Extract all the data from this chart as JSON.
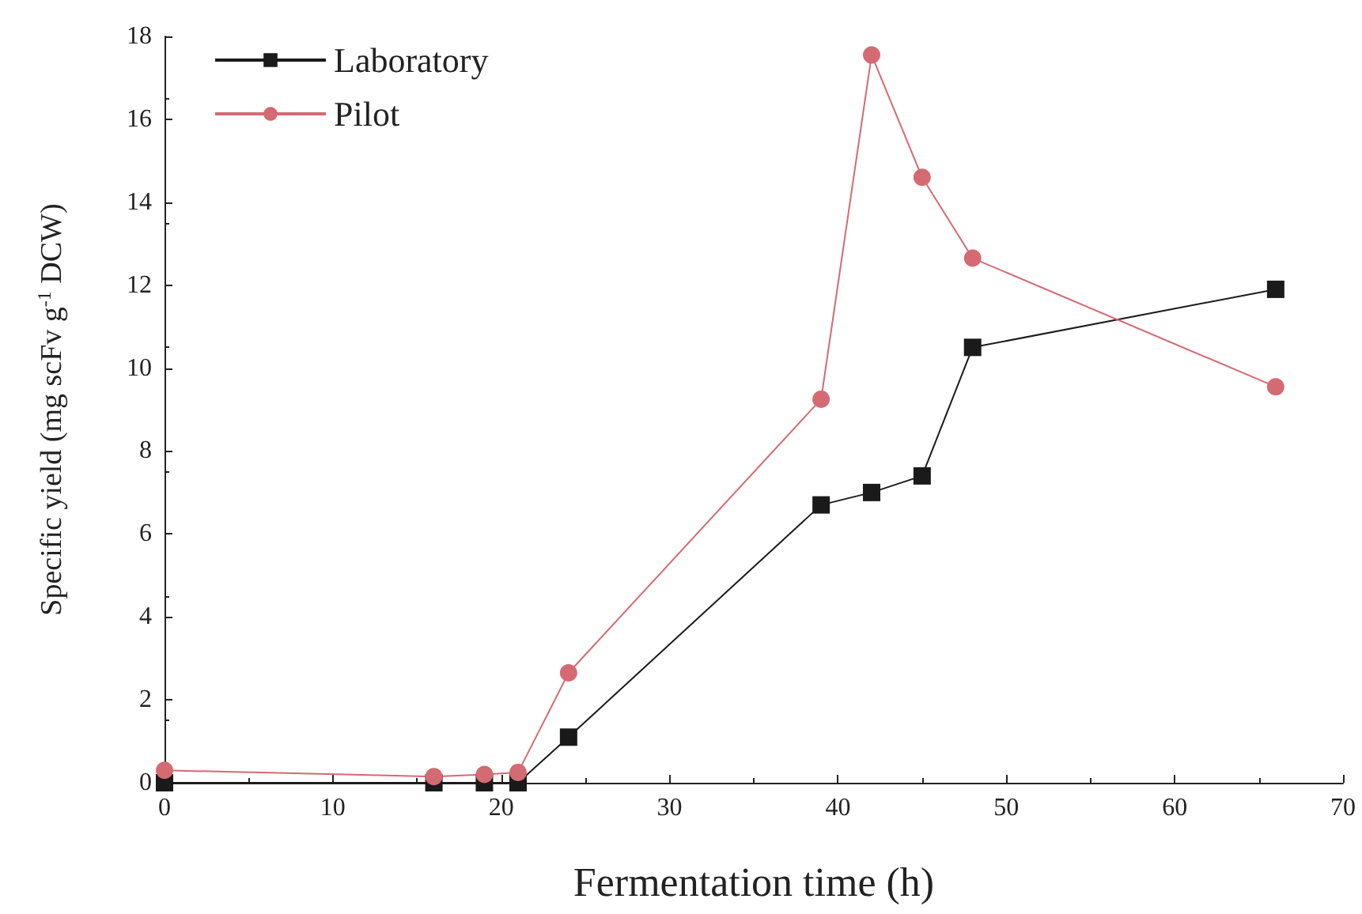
{
  "chart_data": {
    "type": "line",
    "xlabel": "Fermentation time (h)",
    "ylabel": "Specific yield (mg scFv g$^{-1}$ DCW)",
    "xlim": [
      0,
      70
    ],
    "xticks": [
      0,
      10,
      20,
      30,
      40,
      50,
      60,
      70
    ],
    "ylim": [
      0,
      18
    ],
    "yticks": [
      0,
      2,
      4,
      6,
      8,
      10,
      12,
      14,
      16,
      18
    ],
    "grid": false,
    "legend": "top left",
    "series": [
      {
        "name": "Laboratory",
        "color": "#1a1a1a",
        "marker": "square",
        "x": [
          0,
          16,
          19,
          21,
          24,
          39,
          42,
          45,
          48,
          66
        ],
        "values": [
          0,
          0,
          0,
          0,
          1.1,
          6.7,
          7.0,
          7.4,
          10.5,
          11.9
        ]
      },
      {
        "name": "Pilot",
        "color": "#d46a72",
        "marker": "circle",
        "x": [
          0,
          16,
          19,
          21,
          24,
          39,
          42,
          45,
          48,
          66
        ],
        "values": [
          0.3,
          0.15,
          0.2,
          0.25,
          2.65,
          9.25,
          17.55,
          14.6,
          12.65,
          9.55
        ]
      }
    ]
  }
}
